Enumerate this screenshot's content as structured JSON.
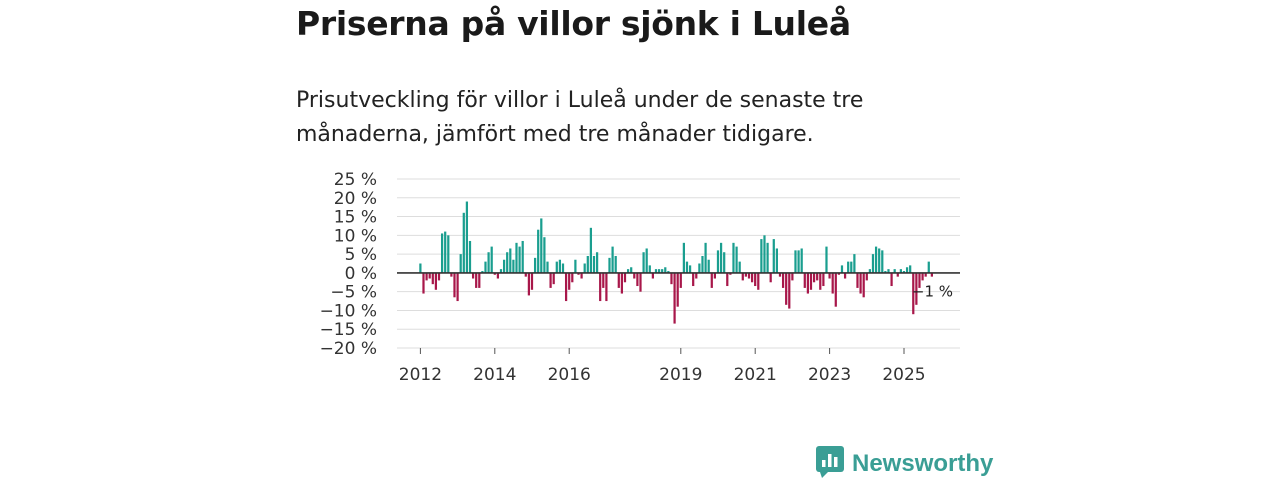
{
  "header": {
    "title": "Priserna på villor sjönk i Luleå",
    "subtitle": "Prisutveckling för villor i Luleå under de senaste tre månaderna, jämfört med tre månader tidigare."
  },
  "brand": {
    "name": "Newsworthy",
    "icon": "newsworthy-logo-icon",
    "color": "#3a9e95"
  },
  "colors": {
    "positive": "#1a9e8f",
    "negative": "#a8174a",
    "grid": "#dddddd",
    "zero": "#333333"
  },
  "chart_data": {
    "type": "bar",
    "title": "Priserna på villor sjönk i Luleå",
    "xlabel": "",
    "ylabel": "",
    "ylim": [
      -20,
      25
    ],
    "ytick_values": [
      25,
      20,
      15,
      10,
      5,
      0,
      -5,
      -10,
      -15,
      -20
    ],
    "ytick_labels": [
      "25 %",
      "20 %",
      "15 %",
      "10 %",
      "5 %",
      "0 %",
      "−5 %",
      "−10 %",
      "−15 %",
      "−20 %"
    ],
    "xtick_values": [
      2012,
      2014,
      2016,
      2019,
      2021,
      2023,
      2025
    ],
    "xtick_labels": [
      "2012",
      "2014",
      "2016",
      "2019",
      "2021",
      "2023",
      "2025"
    ],
    "x_start": 2012,
    "x_step": 0.08333,
    "end_label": "−1 %",
    "end_value": -1,
    "values": [
      2.5,
      -5.5,
      -2.0,
      -1.5,
      -3.0,
      -4.5,
      -2.0,
      10.5,
      11.0,
      10.0,
      -1.0,
      -6.5,
      -7.5,
      5.0,
      16.0,
      19.0,
      8.5,
      -1.5,
      -4.0,
      -4.0,
      0.5,
      3.0,
      5.5,
      7.0,
      -0.5,
      -1.5,
      1.0,
      3.5,
      5.5,
      6.5,
      3.5,
      8.0,
      7.0,
      8.5,
      -1.0,
      -6.0,
      -4.5,
      4.0,
      11.5,
      14.5,
      9.5,
      3.0,
      -4.0,
      -3.0,
      3.0,
      3.5,
      2.5,
      -7.5,
      -4.5,
      -2.5,
      3.5,
      -0.5,
      -1.5,
      2.5,
      4.5,
      12.0,
      4.5,
      5.5,
      -7.5,
      -4.0,
      -7.5,
      4.0,
      7.0,
      4.5,
      -4.0,
      -5.5,
      -2.5,
      1.0,
      1.5,
      -1.5,
      -3.5,
      -5.0,
      5.5,
      6.5,
      2.0,
      -1.5,
      1.0,
      1.0,
      1.0,
      1.5,
      0.5,
      -3.0,
      -13.5,
      -9.0,
      -4.0,
      8.0,
      3.0,
      2.0,
      -3.5,
      -1.5,
      2.5,
      4.5,
      8.0,
      3.5,
      -4.0,
      -1.5,
      6.0,
      8.0,
      5.5,
      -3.5,
      -0.5,
      8.0,
      7.0,
      3.0,
      -2.0,
      -1.0,
      -1.5,
      -2.5,
      -3.5,
      -4.5,
      9.0,
      10.0,
      8.0,
      -2.5,
      9.0,
      6.5,
      -1.0,
      -4.0,
      -8.5,
      -9.5,
      -2.0,
      6.0,
      6.0,
      6.5,
      -4.0,
      -5.5,
      -4.5,
      -2.5,
      -2.0,
      -4.5,
      -3.5,
      7.0,
      -1.5,
      -5.5,
      -9.0,
      -0.5,
      2.0,
      -1.5,
      3.0,
      3.0,
      5.0,
      -4.0,
      -5.5,
      -6.5,
      -2.0,
      1.0,
      5.0,
      7.0,
      6.5,
      6.0,
      0.5,
      1.0,
      -3.5,
      1.0,
      -1.0,
      1.0,
      0.5,
      1.5,
      2.0,
      -11.0,
      -8.5,
      -4.0,
      -2.0,
      -1.0,
      3.0,
      -1.0
    ]
  }
}
